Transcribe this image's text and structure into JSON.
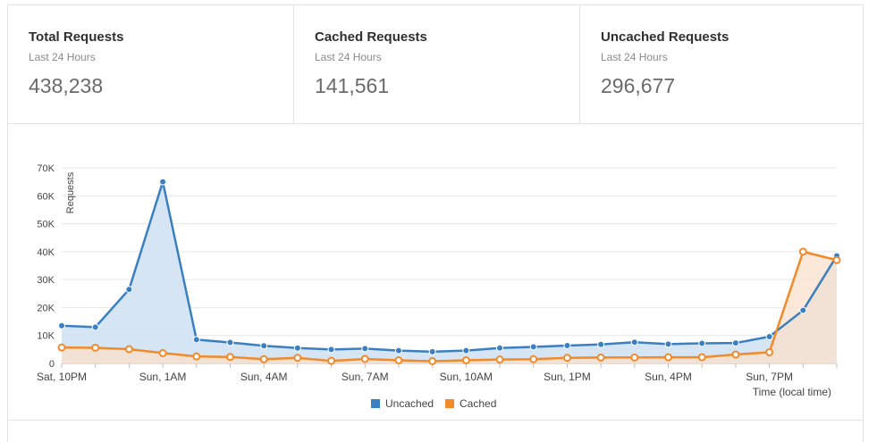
{
  "stats": [
    {
      "title": "Total Requests",
      "subtitle": "Last 24 Hours",
      "value": "438,238"
    },
    {
      "title": "Cached Requests",
      "subtitle": "Last 24 Hours",
      "value": "141,561"
    },
    {
      "title": "Uncached Requests",
      "subtitle": "Last 24 Hours",
      "value": "296,677"
    }
  ],
  "chart_data": {
    "type": "area",
    "title": "",
    "xlabel": "Time (local time)",
    "ylabel": "Requests",
    "ylim": [
      0,
      70000
    ],
    "yticks": [
      0,
      10000,
      20000,
      30000,
      40000,
      50000,
      60000,
      70000
    ],
    "ytick_labels": [
      "0",
      "10K",
      "20K",
      "30K",
      "40K",
      "50K",
      "60K",
      "70K"
    ],
    "xtick_labels": [
      {
        "index": 0,
        "label": "Sat, 10PM"
      },
      {
        "index": 3,
        "label": "Sun, 1AM"
      },
      {
        "index": 6,
        "label": "Sun, 4AM"
      },
      {
        "index": 9,
        "label": "Sun, 7AM"
      },
      {
        "index": 12,
        "label": "Sun, 10AM"
      },
      {
        "index": 15,
        "label": "Sun, 1PM"
      },
      {
        "index": 18,
        "label": "Sun, 4PM"
      },
      {
        "index": 21,
        "label": "Sun, 7PM"
      }
    ],
    "legend_position": "bottom-center",
    "series": [
      {
        "name": "Uncached",
        "color": "#3a7fc2",
        "fill": "#cfe0f2",
        "values": [
          13500,
          13000,
          26500,
          65000,
          8500,
          7500,
          6300,
          5500,
          5000,
          5300,
          4600,
          4200,
          4600,
          5500,
          5900,
          6400,
          6800,
          7600,
          6900,
          7200,
          7300,
          9600,
          19000,
          38500
        ]
      },
      {
        "name": "Cached",
        "color": "#f28a2a",
        "fill": "#fbe0cc",
        "values": [
          5700,
          5600,
          5100,
          3700,
          2500,
          2300,
          1500,
          2000,
          900,
          1600,
          1100,
          800,
          1100,
          1400,
          1500,
          2000,
          2100,
          2100,
          2200,
          2200,
          3200,
          4000,
          40000,
          37000
        ]
      }
    ]
  }
}
